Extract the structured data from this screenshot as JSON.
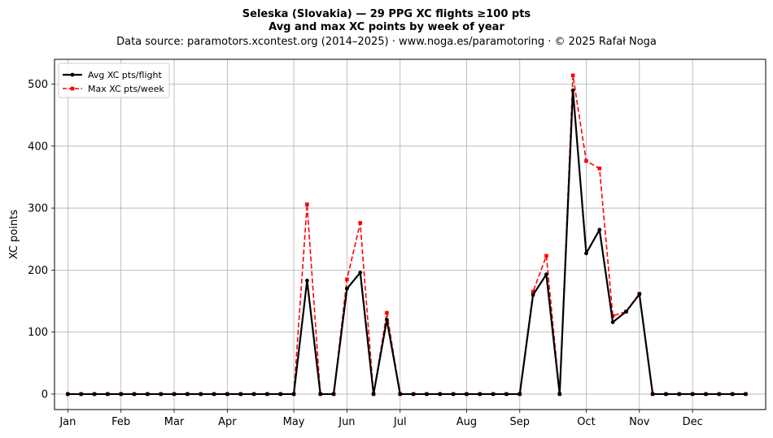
{
  "chart_data": {
    "type": "line",
    "title_line1": "Seleska (Slovakia)  —  29 PPG XC flights ≥100 pts",
    "title_line2": "Avg and max XC points by week of year",
    "subtitle": "Data source: paramotors.xcontest.org (2014–2025)  ·  www.noga.es/paramotoring  ·  © 2025 Rafał Noga",
    "xlabel": "",
    "ylabel": "XC points",
    "xlim": [
      0,
      53.5
    ],
    "ylim": [
      -25,
      540
    ],
    "grid": true,
    "legend_position": "top-left",
    "x_ticks": [
      {
        "label": "Jan",
        "week": 1
      },
      {
        "label": "Feb",
        "week": 5
      },
      {
        "label": "Mar",
        "week": 9
      },
      {
        "label": "Apr",
        "week": 13
      },
      {
        "label": "May",
        "week": 18
      },
      {
        "label": "Jun",
        "week": 22
      },
      {
        "label": "Jul",
        "week": 26
      },
      {
        "label": "Aug",
        "week": 31
      },
      {
        "label": "Sep",
        "week": 35
      },
      {
        "label": "Oct",
        "week": 40
      },
      {
        "label": "Nov",
        "week": 44
      },
      {
        "label": "Dec",
        "week": 48
      }
    ],
    "y_ticks": [
      0,
      100,
      200,
      300,
      400,
      500
    ],
    "x": [
      1,
      2,
      3,
      4,
      5,
      6,
      7,
      8,
      9,
      10,
      11,
      12,
      13,
      14,
      15,
      16,
      17,
      18,
      19,
      20,
      21,
      22,
      23,
      24,
      25,
      26,
      27,
      28,
      29,
      30,
      31,
      32,
      33,
      34,
      35,
      36,
      37,
      38,
      39,
      40,
      41,
      42,
      43,
      44,
      45,
      46,
      47,
      48,
      49,
      50,
      51,
      52
    ],
    "series": [
      {
        "name": "Avg XC pts/flight",
        "color": "#000000",
        "style": "solid",
        "marker": "circle",
        "values": [
          0,
          0,
          0,
          0,
          0,
          0,
          0,
          0,
          0,
          0,
          0,
          0,
          0,
          0,
          0,
          0,
          0,
          0,
          183,
          0,
          0,
          170,
          196,
          0,
          120,
          0,
          0,
          0,
          0,
          0,
          0,
          0,
          0,
          0,
          0,
          160,
          193,
          0,
          490,
          227,
          265,
          116,
          133,
          161,
          0,
          0,
          0,
          0,
          0,
          0,
          0,
          0
        ]
      },
      {
        "name": "Max XC pts/week",
        "color": "#ff0000",
        "style": "dashed",
        "marker": "square",
        "values": [
          0,
          0,
          0,
          0,
          0,
          0,
          0,
          0,
          0,
          0,
          0,
          0,
          0,
          0,
          0,
          0,
          0,
          0,
          306,
          0,
          0,
          185,
          276,
          0,
          131,
          0,
          0,
          0,
          0,
          0,
          0,
          0,
          0,
          0,
          0,
          165,
          223,
          0,
          514,
          376,
          364,
          126,
          133,
          162,
          0,
          0,
          0,
          0,
          0,
          0,
          0,
          0
        ]
      }
    ]
  }
}
